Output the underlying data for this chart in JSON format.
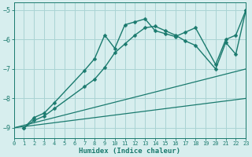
{
  "xlabel": "Humidex (Indice chaleur)",
  "background_color": "#d7eeee",
  "grid_color": "#aad4d4",
  "line_color": "#1a7a6e",
  "xlim": [
    0,
    23
  ],
  "ylim": [
    -9.35,
    -4.75
  ],
  "yticks": [
    -9,
    -8,
    -7,
    -6,
    -5
  ],
  "xticks": [
    0,
    1,
    2,
    3,
    4,
    5,
    6,
    7,
    8,
    9,
    10,
    11,
    12,
    13,
    14,
    15,
    16,
    17,
    18,
    19,
    20,
    21,
    22,
    23
  ],
  "series": [
    {
      "x": [
        1,
        2,
        3,
        4,
        7,
        8,
        9,
        10,
        11,
        12,
        13,
        14,
        15,
        16,
        17,
        18,
        20,
        21,
        22,
        23
      ],
      "y": [
        -9.0,
        -8.65,
        -8.5,
        -8.15,
        -7.05,
        -6.65,
        -5.85,
        -6.3,
        -5.5,
        -5.4,
        -5.3,
        -5.7,
        -5.8,
        -5.9,
        -5.75,
        -5.6,
        -6.85,
        -6.0,
        -5.85,
        -5.0
      ],
      "has_marker": true,
      "markersize": 2.5,
      "lw": 1.0
    },
    {
      "x": [
        1,
        2,
        3,
        4,
        7,
        8,
        9,
        10,
        11,
        12,
        13,
        14,
        15,
        16,
        17,
        18,
        20,
        21,
        22,
        23
      ],
      "y": [
        -9.0,
        -8.75,
        -8.6,
        -8.35,
        -7.6,
        -7.35,
        -6.95,
        -6.45,
        -6.15,
        -5.85,
        -5.6,
        -5.55,
        -5.7,
        -5.85,
        -6.05,
        -6.2,
        -7.0,
        -6.1,
        -6.5,
        -5.0
      ],
      "has_marker": true,
      "markersize": 2.5,
      "lw": 1.0
    },
    {
      "x": [
        0,
        23
      ],
      "y": [
        -9.0,
        -7.0
      ],
      "has_marker": false,
      "markersize": 0,
      "lw": 0.9
    },
    {
      "x": [
        0,
        23
      ],
      "y": [
        -9.0,
        -8.0
      ],
      "has_marker": false,
      "markersize": 0,
      "lw": 0.9
    }
  ]
}
